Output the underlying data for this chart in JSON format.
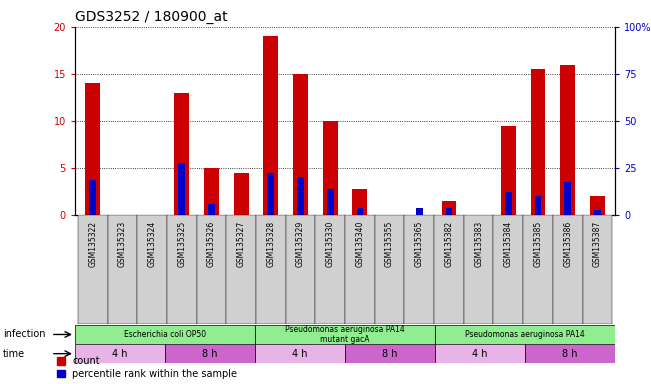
{
  "title": "GDS3252 / 180900_at",
  "samples": [
    "GSM135322",
    "GSM135323",
    "GSM135324",
    "GSM135325",
    "GSM135326",
    "GSM135327",
    "GSM135328",
    "GSM135329",
    "GSM135330",
    "GSM135340",
    "GSM135355",
    "GSM135365",
    "GSM135382",
    "GSM135383",
    "GSM135384",
    "GSM135385",
    "GSM135386",
    "GSM135387"
  ],
  "red_values": [
    14.0,
    0.0,
    0.0,
    13.0,
    5.0,
    4.5,
    19.0,
    15.0,
    10.0,
    2.8,
    0.0,
    0.0,
    1.5,
    0.0,
    9.5,
    15.5,
    16.0,
    2.0
  ],
  "blue_values": [
    18.5,
    0.0,
    0.0,
    27.5,
    6.0,
    0.0,
    22.5,
    20.0,
    14.0,
    4.0,
    0.0,
    4.0,
    4.0,
    0.0,
    12.5,
    10.0,
    17.5,
    2.5
  ],
  "ylim_left": [
    0,
    20
  ],
  "ylim_right": [
    0,
    100
  ],
  "yticks_left": [
    0,
    5,
    10,
    15,
    20
  ],
  "yticks_right": [
    0,
    25,
    50,
    75,
    100
  ],
  "yticklabels_right": [
    "0",
    "25",
    "50",
    "75",
    "100%"
  ],
  "infection_groups": [
    {
      "label": "Escherichia coli OP50",
      "start": 0,
      "end": 6,
      "color": "#90ee90"
    },
    {
      "label": "Pseudomonas aeruginosa PA14\nmutant gacA",
      "start": 6,
      "end": 12,
      "color": "#90ee90"
    },
    {
      "label": "Pseudomonas aeruginosa PA14",
      "start": 12,
      "end": 18,
      "color": "#90ee90"
    }
  ],
  "time_groups": [
    {
      "label": "4 h",
      "start": 0,
      "end": 3
    },
    {
      "label": "8 h",
      "start": 3,
      "end": 6
    },
    {
      "label": "4 h",
      "start": 6,
      "end": 9
    },
    {
      "label": "8 h",
      "start": 9,
      "end": 12
    },
    {
      "label": "4 h",
      "start": 12,
      "end": 15
    },
    {
      "label": "8 h",
      "start": 15,
      "end": 18
    }
  ],
  "time_colors": [
    "#e8b4e8",
    "#cc66cc",
    "#e8b4e8",
    "#cc66cc",
    "#e8b4e8",
    "#cc66cc"
  ],
  "bar_width": 0.5,
  "red_color": "#cc0000",
  "blue_color": "#0000cc",
  "bg_color": "#ffffff",
  "title_fontsize": 10,
  "legend_fontsize": 7,
  "infection_label": "infection",
  "time_label": "time"
}
